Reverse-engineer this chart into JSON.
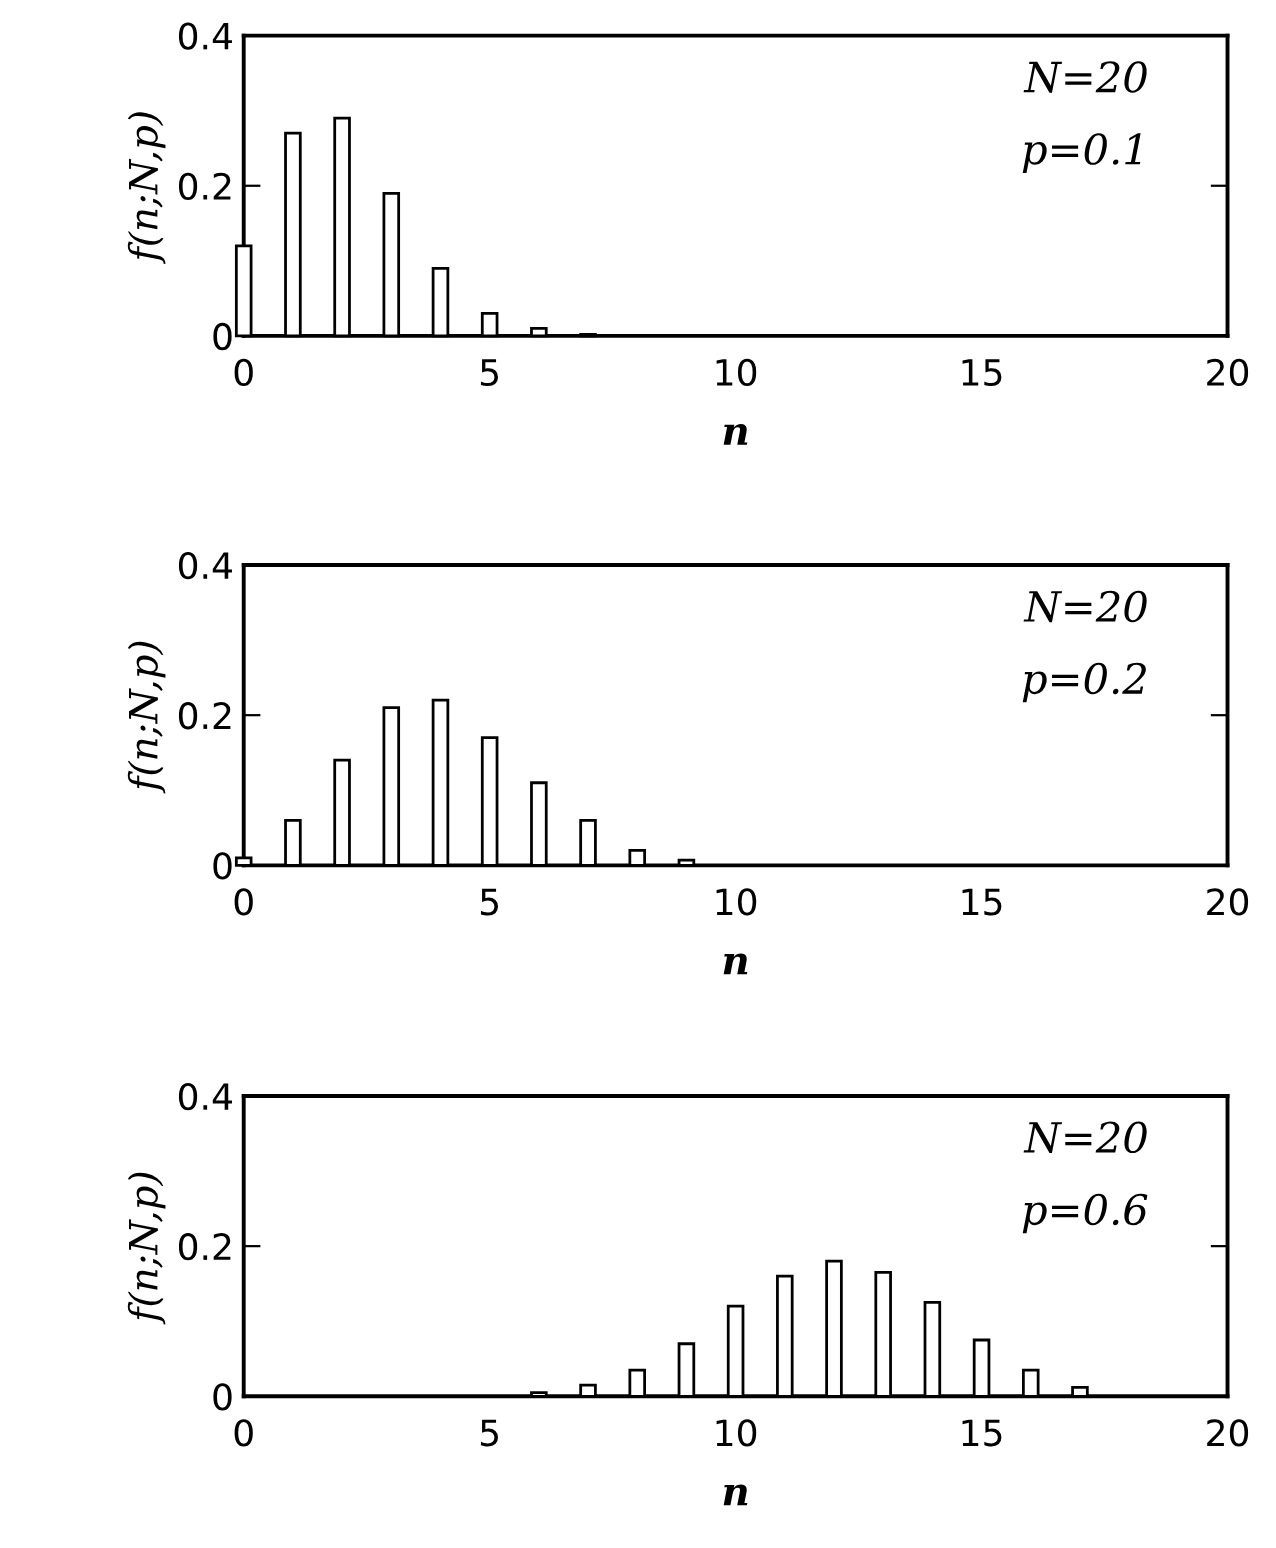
{
  "chart_data": [
    {
      "type": "bar",
      "xlabel": "n",
      "ylabel": "f(n;N,p)",
      "annotations": [
        "N=20",
        "p=0.1"
      ],
      "x": [
        0,
        1,
        2,
        3,
        4,
        5,
        6,
        7
      ],
      "values": [
        0.12,
        0.27,
        0.29,
        0.19,
        0.09,
        0.03,
        0.01,
        0.002
      ],
      "color": "#ffffff",
      "xlim": [
        0,
        20
      ],
      "xticks": [
        0,
        5,
        10,
        15,
        20
      ],
      "ylim": [
        0,
        0.4
      ],
      "yticks": [
        0,
        0.2,
        0.4
      ],
      "grid": false,
      "legend": false
    },
    {
      "type": "bar",
      "xlabel": "n",
      "ylabel": "f(n;N,p)",
      "annotations": [
        "N=20",
        "p=0.2"
      ],
      "x": [
        0,
        1,
        2,
        3,
        4,
        5,
        6,
        7,
        8,
        9
      ],
      "values": [
        0.01,
        0.06,
        0.14,
        0.21,
        0.22,
        0.17,
        0.11,
        0.06,
        0.02,
        0.007
      ],
      "color": "#ffffff",
      "xlim": [
        0,
        20
      ],
      "xticks": [
        0,
        5,
        10,
        15,
        20
      ],
      "ylim": [
        0,
        0.4
      ],
      "yticks": [
        0,
        0.2,
        0.4
      ],
      "grid": false,
      "legend": false
    },
    {
      "type": "bar",
      "xlabel": "n",
      "ylabel": "f(n;N,p)",
      "annotations": [
        "N=20",
        "p=0.6"
      ],
      "x": [
        6,
        7,
        8,
        9,
        10,
        11,
        12,
        13,
        14,
        15,
        16,
        17
      ],
      "values": [
        0.005,
        0.015,
        0.035,
        0.07,
        0.12,
        0.16,
        0.18,
        0.165,
        0.125,
        0.075,
        0.035,
        0.012
      ],
      "color": "#ffffff",
      "xlim": [
        0,
        20
      ],
      "xticks": [
        0,
        5,
        10,
        15,
        20
      ],
      "ylim": [
        0,
        0.4
      ],
      "yticks": [
        0,
        0.2,
        0.4
      ],
      "grid": false,
      "legend": false
    }
  ]
}
